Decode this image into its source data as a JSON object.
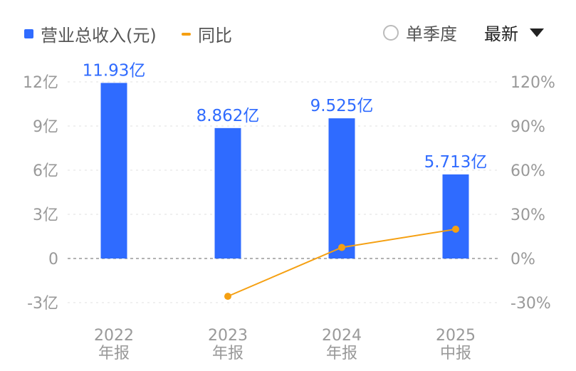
{
  "legend": {
    "bar_label": "营业总收入(元)",
    "line_label": "同比"
  },
  "controls": {
    "quarterly_label": "单季度",
    "period_label": "最新"
  },
  "colors": {
    "bar": "#2f6bff",
    "line": "#f5a012",
    "grid": "#e6e6e6",
    "zero_line": "#999999"
  },
  "chart_data": {
    "type": "bar",
    "categories": [
      [
        "2022",
        "年报"
      ],
      [
        "2023",
        "年报"
      ],
      [
        "2024",
        "年报"
      ],
      [
        "2025",
        "中报"
      ]
    ],
    "series": [
      {
        "name": "营业总收入(元)",
        "type": "bar",
        "axis": "left",
        "values": [
          11.93,
          8.862,
          9.525,
          5.713
        ],
        "labels": [
          "11.93亿",
          "8.862亿",
          "9.525亿",
          "5.713亿"
        ]
      },
      {
        "name": "同比",
        "type": "line",
        "axis": "right",
        "values": [
          null,
          -25.7,
          7.5,
          19.9
        ]
      }
    ],
    "left_axis": {
      "ticks": [
        12,
        9,
        6,
        3,
        0,
        -3
      ],
      "tick_labels": [
        "12亿",
        "9亿",
        "6亿",
        "3亿",
        "0",
        "-3亿"
      ],
      "range": [
        -3,
        12
      ]
    },
    "right_axis": {
      "ticks": [
        120,
        90,
        60,
        30,
        0,
        -30
      ],
      "tick_labels": [
        "120%",
        "90%",
        "60%",
        "30%",
        "0%",
        "-30%"
      ],
      "range": [
        -30,
        120
      ]
    },
    "grid": true
  }
}
